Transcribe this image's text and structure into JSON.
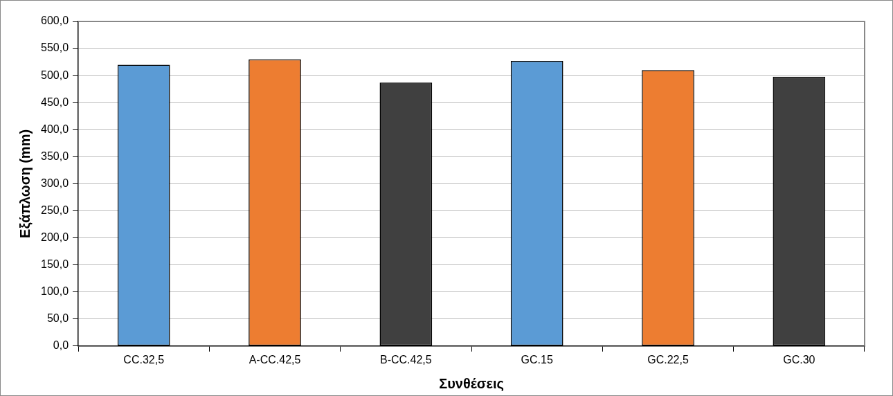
{
  "chart_data": {
    "type": "bar",
    "xlabel": "Συνθέσεις",
    "ylabel": "Εξάπλωση (mm)",
    "categories": [
      "CC.32,5",
      "A-CC.42,5",
      "B-CC.42,5",
      "GC.15",
      "GC.22,5",
      "GC.30"
    ],
    "values": [
      520,
      530,
      487,
      527,
      510,
      498
    ],
    "colors": [
      "#5b9bd5",
      "#ed7d31",
      "#404040",
      "#5b9bd5",
      "#ed7d31",
      "#404040"
    ],
    "ylim": [
      0,
      600
    ],
    "yticks": [
      {
        "value": 0,
        "label": "0,0"
      },
      {
        "value": 50,
        "label": "50,0"
      },
      {
        "value": 100,
        "label": "100,0"
      },
      {
        "value": 150,
        "label": "150,0"
      },
      {
        "value": 200,
        "label": "200,0"
      },
      {
        "value": 250,
        "label": "250,0"
      },
      {
        "value": 300,
        "label": "300,0"
      },
      {
        "value": 350,
        "label": "350,0"
      },
      {
        "value": 400,
        "label": "400,0"
      },
      {
        "value": 450,
        "label": "450,0"
      },
      {
        "value": 500,
        "label": "500,0"
      },
      {
        "value": 550,
        "label": "550,0"
      },
      {
        "value": 600,
        "label": "600,0"
      }
    ],
    "grid": "y",
    "legend": false
  }
}
